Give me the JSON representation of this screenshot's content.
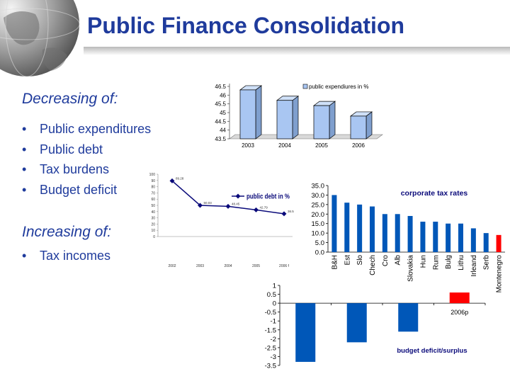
{
  "slide": {
    "title": "Public Finance Consolidation",
    "decreasing_heading": "Decreasing of:",
    "decreasing_items": [
      "Public expenditures",
      "Public debt",
      "Tax burdens",
      "Budget deficit"
    ],
    "increasing_heading": "Increasing of:",
    "increasing_items": [
      "Tax incomes"
    ],
    "bullet": "•",
    "icons": {
      "decoration": "globe-icon"
    }
  },
  "chart_data": [
    {
      "type": "bar",
      "id": "expenditures",
      "title": "",
      "legend": "public expendiures in %",
      "legend_placement": "top-right",
      "categories": [
        "2003",
        "2004",
        "2005",
        "2006"
      ],
      "values": [
        46.3,
        45.7,
        45.4,
        44.8
      ],
      "ylim": [
        43.5,
        46.5
      ],
      "yticks": [
        "46.5",
        "46",
        "45.5",
        "45",
        "44.5",
        "44",
        "43.5"
      ],
      "style": "3d",
      "color": "#a9c6f2"
    },
    {
      "type": "line",
      "id": "public-debt",
      "legend": "public debt in %",
      "legend_placement": "right",
      "categories": [
        "2002",
        "2003",
        "2004",
        "2005",
        "2006 f"
      ],
      "values": [
        89.28,
        50.03,
        48.45,
        42.79,
        36.5
      ],
      "data_labels": [
        "89.28",
        "50.03",
        "48.45",
        "42.79",
        "36.5"
      ],
      "ylim": [
        0,
        100
      ],
      "yticks": [
        "100",
        "90",
        "80",
        "70",
        "60",
        "50",
        "40",
        "30",
        "20",
        "10",
        "0"
      ],
      "color": "#0a0a7a"
    },
    {
      "type": "bar",
      "id": "corporate-tax",
      "title": "corporate tax rates",
      "categories": [
        "B&H",
        "Est",
        "Slo",
        "Chech",
        "Cro",
        "Alb",
        "Slovakia",
        "Hun",
        "Rum",
        "Bulg",
        "Lithu",
        "Irleand",
        "Serb",
        "Montenegro"
      ],
      "values": [
        30,
        26,
        25,
        24,
        20,
        20,
        19,
        16,
        16,
        15,
        15,
        12.5,
        10,
        9
      ],
      "ylim": [
        0,
        35
      ],
      "yticks": [
        "35.0",
        "30.0",
        "25.0",
        "20.0",
        "15.0",
        "10.0",
        "5.0",
        "0.0"
      ],
      "color": "#0057b8",
      "highlight_color": "#ff0000",
      "highlight_index": 13
    },
    {
      "type": "bar",
      "id": "budget-deficit",
      "legend": "budget deficit/surplus",
      "categories": [
        "",
        "",
        "",
        "2006p"
      ],
      "values": [
        -3.3,
        -2.2,
        -1.6,
        0.6
      ],
      "ylim": [
        -3.5,
        1
      ],
      "yticks": [
        "1",
        "0.5",
        "0",
        "-0.5",
        "-1",
        "-1.5",
        "-2",
        "-2.5",
        "-3",
        "-3.5"
      ],
      "color": "#0057b8",
      "highlight_color": "#ff0000",
      "highlight_index": 3
    }
  ]
}
